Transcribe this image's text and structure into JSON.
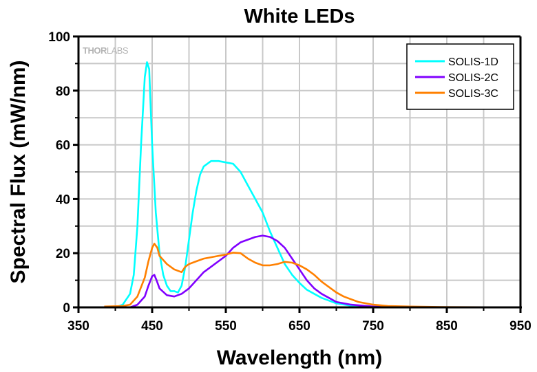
{
  "chart_data": {
    "type": "line",
    "title": "White LEDs",
    "xlabel": "Wavelength (nm)",
    "ylabel": "Spectral Flux (mW/nm)",
    "xlim": [
      350,
      950
    ],
    "ylim": [
      0,
      100
    ],
    "xticks": [
      350,
      450,
      550,
      650,
      750,
      850,
      950
    ],
    "xticks_minor": [
      400,
      500,
      600,
      700,
      800,
      900
    ],
    "yticks": [
      0,
      20,
      40,
      60,
      80,
      100
    ],
    "yticks_minor": [
      10,
      30,
      50,
      70,
      90
    ],
    "grid": true,
    "legend_position": "top-right",
    "watermark": {
      "left": "THOR",
      "right": "LABS"
    },
    "series": [
      {
        "name": "SOLIS-1D",
        "color": "#00ffff",
        "x": [
          385,
          400,
          410,
          420,
          425,
          430,
          435,
          440,
          443,
          446,
          450,
          455,
          460,
          465,
          470,
          475,
          480,
          485,
          490,
          495,
          500,
          505,
          510,
          515,
          520,
          530,
          540,
          550,
          560,
          570,
          580,
          590,
          600,
          610,
          620,
          630,
          640,
          650,
          660,
          670,
          680,
          700,
          720,
          750,
          800,
          950
        ],
        "y": [
          0,
          0,
          1,
          5,
          12,
          30,
          60,
          85,
          90.5,
          88,
          60,
          35,
          20,
          12,
          8,
          6,
          6,
          5.5,
          8,
          15,
          25,
          35,
          43,
          49,
          52,
          54,
          54,
          53.5,
          53,
          50,
          45,
          40,
          35,
          28,
          22,
          16,
          12,
          9,
          6.5,
          5,
          3.5,
          1.5,
          0.6,
          0.1,
          0,
          0
        ]
      },
      {
        "name": "SOLIS-2C",
        "color": "#8000ff",
        "x": [
          400,
          420,
          430,
          440,
          445,
          450,
          453,
          456,
          460,
          470,
          480,
          490,
          500,
          510,
          520,
          530,
          540,
          550,
          560,
          570,
          580,
          590,
          600,
          610,
          620,
          630,
          640,
          650,
          660,
          670,
          680,
          690,
          700,
          720,
          750,
          800,
          950
        ],
        "y": [
          0,
          0,
          1,
          4,
          8,
          11.5,
          12,
          10,
          7,
          4.5,
          4,
          5,
          7,
          10,
          13,
          15,
          17,
          19,
          22,
          24,
          25,
          26,
          26.5,
          26,
          24.5,
          22,
          18,
          14,
          10,
          7,
          5,
          3.5,
          2,
          1,
          0.3,
          0,
          0
        ]
      },
      {
        "name": "SOLIS-3C",
        "color": "#ff8000",
        "x": [
          385,
          410,
          420,
          430,
          440,
          445,
          450,
          453,
          457,
          460,
          470,
          480,
          490,
          495,
          500,
          510,
          520,
          530,
          540,
          550,
          560,
          570,
          580,
          590,
          600,
          610,
          620,
          630,
          640,
          650,
          660,
          670,
          680,
          690,
          700,
          710,
          720,
          730,
          740,
          750,
          770,
          800,
          850,
          950
        ],
        "y": [
          0.3,
          0.5,
          1,
          4,
          11,
          17,
          22,
          23.5,
          22,
          19,
          16,
          14,
          13,
          15,
          16,
          17,
          18,
          18.5,
          19,
          19.5,
          20.2,
          20,
          18,
          16.5,
          15.5,
          15.5,
          16,
          16.8,
          16.5,
          15.5,
          14,
          12,
          9.5,
          7.5,
          5.5,
          4,
          3,
          2,
          1.5,
          1,
          0.5,
          0.3,
          0.1,
          0
        ]
      }
    ]
  }
}
